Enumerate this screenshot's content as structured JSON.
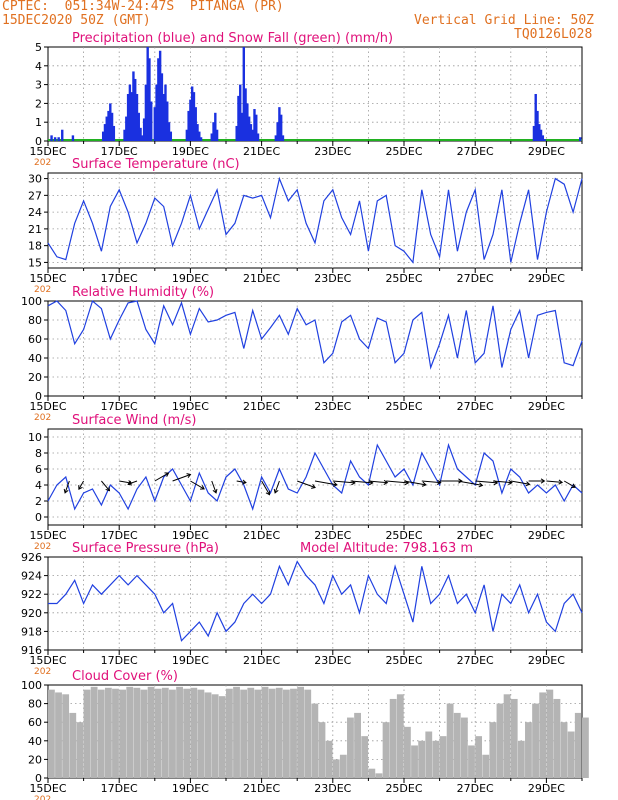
{
  "header": {
    "line1_left": "CPTEC:  051:34W-24:47S  PITANGA (PR)",
    "line2_left": "15DEC2020 50Z (GMT)",
    "line2_right": "Vertical Grid Line: 50Z",
    "line3_right": "TQ0126L028"
  },
  "colors": {
    "header": "#e07020",
    "title": "#e0107a",
    "line": "#2040e0",
    "bar": "#1a30e0",
    "snow": "#20b020",
    "cloud": "#b4b4b4"
  },
  "x_ticks": [
    "15DEC",
    "17DEC",
    "19DEC",
    "21DEC",
    "23DEC",
    "25DEC",
    "27DEC",
    "29DEC"
  ],
  "tick_day": [
    "15",
    "17",
    "19",
    "21",
    "23",
    "25",
    "27",
    "29"
  ],
  "year_stub": "202",
  "chart_data": [
    {
      "id": "precip",
      "type": "bar",
      "title": "Precipitation (blue) and Snow Fall (green) (mm/h)",
      "ylim": [
        0,
        5
      ],
      "yticks": [
        0,
        1,
        2,
        3,
        4,
        5
      ],
      "grid": true,
      "x": [
        0.1,
        0.2,
        0.3,
        0.4,
        0.7,
        1.55,
        1.6,
        1.65,
        1.7,
        1.75,
        1.8,
        1.85,
        2.15,
        2.2,
        2.25,
        2.3,
        2.35,
        2.4,
        2.45,
        2.5,
        2.55,
        2.6,
        2.65,
        2.7,
        2.75,
        2.8,
        2.85,
        2.9,
        3.0,
        3.05,
        3.1,
        3.15,
        3.2,
        3.25,
        3.3,
        3.35,
        3.4,
        3.45,
        3.9,
        3.95,
        4.0,
        4.05,
        4.1,
        4.15,
        4.2,
        4.25,
        4.3,
        4.6,
        4.65,
        4.7,
        4.75,
        5.3,
        5.35,
        5.4,
        5.45,
        5.5,
        5.55,
        5.6,
        5.65,
        5.7,
        5.75,
        5.8,
        5.85,
        5.9,
        6.4,
        6.45,
        6.5,
        6.55,
        6.6,
        13.65,
        13.7,
        13.75,
        13.8,
        13.85,
        13.9,
        13.95,
        14.95
      ],
      "values": [
        0.3,
        0.2,
        0.2,
        0.6,
        0.3,
        0.5,
        0.9,
        1.3,
        1.6,
        2.0,
        1.5,
        0.8,
        0.6,
        1.3,
        2.5,
        3.0,
        2.6,
        3.7,
        3.3,
        2.5,
        1.5,
        0.7,
        0.3,
        1.2,
        3.0,
        5.0,
        4.4,
        2.1,
        1.8,
        3.0,
        4.4,
        4.8,
        3.6,
        2.5,
        3.0,
        2.1,
        1.0,
        0.5,
        0.6,
        1.6,
        2.2,
        2.9,
        2.6,
        1.8,
        0.9,
        0.5,
        0.2,
        0.4,
        1.0,
        1.5,
        0.6,
        0.8,
        2.4,
        3.0,
        1.5,
        5.0,
        2.8,
        2.0,
        1.3,
        0.9,
        0.6,
        1.7,
        1.4,
        0.4,
        0.3,
        1.0,
        1.8,
        1.4,
        0.3,
        0.8,
        2.5,
        1.6,
        0.9,
        0.6,
        0.3,
        0.1,
        0.2
      ]
    },
    {
      "id": "temp",
      "type": "line",
      "title": "Surface Temperature (nC)",
      "ylim": [
        14,
        31
      ],
      "yticks": [
        15,
        18,
        21,
        24,
        27,
        30
      ],
      "grid": true,
      "x": [
        0,
        0.25,
        0.5,
        0.75,
        1.0,
        1.25,
        1.5,
        1.75,
        2.0,
        2.25,
        2.5,
        2.75,
        3.0,
        3.25,
        3.5,
        3.75,
        4.0,
        4.25,
        4.5,
        4.75,
        5.0,
        5.25,
        5.5,
        5.75,
        6.0,
        6.25,
        6.5,
        6.75,
        7.0,
        7.25,
        7.5,
        7.75,
        8.0,
        8.25,
        8.5,
        8.75,
        9.0,
        9.25,
        9.5,
        9.75,
        10.0,
        10.25,
        10.5,
        10.75,
        11.0,
        11.25,
        11.5,
        11.75,
        12.0,
        12.25,
        12.5,
        12.75,
        13.0,
        13.25,
        13.5,
        13.75,
        14.0,
        14.25,
        14.5,
        14.75,
        15.0
      ],
      "values": [
        18.5,
        16,
        15.5,
        22,
        26,
        22,
        17,
        25,
        28,
        24,
        18.5,
        22,
        26.5,
        25,
        18,
        22,
        27,
        21,
        24.5,
        28,
        20,
        22,
        27,
        26.5,
        27,
        23,
        30,
        26,
        28,
        22,
        18.5,
        26,
        28,
        23,
        20,
        26,
        17,
        26,
        27,
        18,
        17,
        15,
        28,
        20,
        16,
        28,
        17,
        24,
        28,
        15.5,
        20,
        28,
        15,
        22,
        28,
        15.5,
        24,
        30,
        29,
        24,
        30
      ]
    },
    {
      "id": "rh",
      "type": "line",
      "title": "Relative Humidity (%)",
      "ylim": [
        0,
        100
      ],
      "yticks": [
        0,
        20,
        40,
        60,
        80,
        100
      ],
      "grid": true,
      "x": [
        0,
        0.25,
        0.5,
        0.75,
        1.0,
        1.25,
        1.5,
        1.75,
        2.0,
        2.25,
        2.5,
        2.75,
        3.0,
        3.25,
        3.5,
        3.75,
        4.0,
        4.25,
        4.5,
        4.75,
        5.0,
        5.25,
        5.5,
        5.75,
        6.0,
        6.25,
        6.5,
        6.75,
        7.0,
        7.25,
        7.5,
        7.75,
        8.0,
        8.25,
        8.5,
        8.75,
        9.0,
        9.25,
        9.5,
        9.75,
        10.0,
        10.25,
        10.5,
        10.75,
        11.0,
        11.25,
        11.5,
        11.75,
        12.0,
        12.25,
        12.5,
        12.75,
        13.0,
        13.25,
        13.5,
        13.75,
        14.0,
        14.25,
        14.5,
        14.75,
        15.0
      ],
      "values": [
        95,
        100,
        90,
        55,
        70,
        100,
        92,
        60,
        80,
        98,
        100,
        70,
        55,
        95,
        75,
        98,
        65,
        92,
        78,
        80,
        85,
        88,
        50,
        90,
        60,
        72,
        85,
        65,
        92,
        75,
        80,
        35,
        45,
        78,
        85,
        60,
        50,
        82,
        78,
        35,
        45,
        80,
        88,
        30,
        55,
        85,
        40,
        90,
        35,
        45,
        95,
        30,
        70,
        90,
        40,
        85,
        88,
        90,
        35,
        32,
        58
      ]
    },
    {
      "id": "wind",
      "type": "line",
      "title": "Surface Wind (m/s)",
      "ylim": [
        -1,
        11
      ],
      "yticks": [
        0,
        2,
        4,
        6,
        8,
        10
      ],
      "grid": true,
      "x": [
        0,
        0.25,
        0.5,
        0.75,
        1.0,
        1.25,
        1.5,
        1.75,
        2.0,
        2.25,
        2.5,
        2.75,
        3.0,
        3.25,
        3.5,
        3.75,
        4.0,
        4.25,
        4.5,
        4.75,
        5.0,
        5.25,
        5.5,
        5.75,
        6.0,
        6.25,
        6.5,
        6.75,
        7.0,
        7.25,
        7.5,
        7.75,
        8.0,
        8.25,
        8.5,
        8.75,
        9.0,
        9.25,
        9.5,
        9.75,
        10.0,
        10.25,
        10.5,
        10.75,
        11.0,
        11.25,
        11.5,
        11.75,
        12.0,
        12.25,
        12.5,
        12.75,
        13.0,
        13.25,
        13.5,
        13.75,
        14.0,
        14.25,
        14.5,
        14.75,
        15.0
      ],
      "values": [
        2,
        4,
        5,
        1,
        3,
        3.5,
        1.5,
        4,
        3,
        1,
        3.5,
        5,
        2,
        5,
        6,
        4,
        2,
        5.5,
        3,
        2,
        5,
        6,
        4,
        1,
        5,
        3,
        6,
        3.5,
        3,
        5,
        8,
        6,
        4,
        3,
        7,
        5,
        4,
        9,
        7,
        5,
        6,
        4,
        8,
        6,
        4,
        9,
        6,
        5,
        4,
        8,
        7,
        3,
        6,
        5,
        3,
        4,
        3,
        4,
        2,
        4,
        3
      ],
      "vectors": {
        "x": [
          0.6,
          1.0,
          1.5,
          2.0,
          2.5,
          3.0,
          3.5,
          4.0,
          4.6,
          5.3,
          6.0,
          6.5,
          7.0,
          7.5,
          8.0,
          8.5,
          9.0,
          9.5,
          10.0,
          10.5,
          11.0,
          11.5,
          12.0,
          12.5,
          13.0,
          13.5,
          14.0,
          14.5
        ],
        "speed": [
          3,
          2,
          3,
          3,
          2,
          4,
          5,
          4,
          3,
          2,
          4,
          3,
          5,
          6,
          6,
          6,
          5,
          6,
          6,
          5,
          6,
          7,
          6,
          5,
          5,
          4,
          4,
          3
        ],
        "dir_deg": [
          200,
          210,
          140,
          100,
          250,
          60,
          70,
          120,
          160,
          100,
          150,
          200,
          110,
          100,
          95,
          95,
          95,
          95,
          100,
          95,
          90,
          100,
          95,
          95,
          100,
          90,
          95,
          120
        ]
      }
    },
    {
      "id": "pres",
      "type": "line",
      "title": "Surface Pressure (hPa)",
      "subtitle": "Model Altitude: 798.163 m",
      "ylim": [
        916,
        926
      ],
      "yticks": [
        916,
        918,
        920,
        922,
        924,
        926
      ],
      "grid": true,
      "x": [
        0,
        0.25,
        0.5,
        0.75,
        1.0,
        1.25,
        1.5,
        1.75,
        2.0,
        2.25,
        2.5,
        2.75,
        3.0,
        3.25,
        3.5,
        3.75,
        4.0,
        4.25,
        4.5,
        4.75,
        5.0,
        5.25,
        5.5,
        5.75,
        6.0,
        6.25,
        6.5,
        6.75,
        7.0,
        7.25,
        7.5,
        7.75,
        8.0,
        8.25,
        8.5,
        8.75,
        9.0,
        9.25,
        9.5,
        9.75,
        10.0,
        10.25,
        10.5,
        10.75,
        11.0,
        11.25,
        11.5,
        11.75,
        12.0,
        12.25,
        12.5,
        12.75,
        13.0,
        13.25,
        13.5,
        13.75,
        14.0,
        14.25,
        14.5,
        14.75,
        15.0
      ],
      "values": [
        921,
        921,
        922,
        923.5,
        921,
        923,
        922,
        923,
        924,
        923,
        924,
        923,
        922,
        920,
        921,
        917,
        918,
        919,
        917.5,
        920,
        918,
        919,
        921,
        922,
        921,
        922,
        925,
        923,
        925.5,
        924,
        923,
        921,
        924,
        922,
        923,
        920,
        924,
        922,
        921,
        925,
        922,
        919,
        925,
        921,
        922,
        924,
        921,
        922,
        920,
        923,
        918,
        922,
        921,
        923,
        920,
        922,
        919,
        918,
        921,
        922,
        920
      ]
    },
    {
      "id": "cloud",
      "type": "area",
      "title": "Cloud Cover (%)",
      "ylim": [
        0,
        100
      ],
      "yticks": [
        0,
        20,
        40,
        60,
        80,
        100
      ],
      "grid": true,
      "x": [
        0,
        0.2,
        0.4,
        0.6,
        0.8,
        1.0,
        1.2,
        1.4,
        1.6,
        1.8,
        2.0,
        2.2,
        2.4,
        2.6,
        2.8,
        3.0,
        3.2,
        3.4,
        3.6,
        3.8,
        4.0,
        4.2,
        4.4,
        4.6,
        4.8,
        5.0,
        5.2,
        5.4,
        5.6,
        5.8,
        6.0,
        6.2,
        6.4,
        6.6,
        6.8,
        7.0,
        7.2,
        7.4,
        7.6,
        7.8,
        8.0,
        8.2,
        8.4,
        8.6,
        8.8,
        9.0,
        9.2,
        9.4,
        9.6,
        9.8,
        10.0,
        10.2,
        10.4,
        10.6,
        10.8,
        11.0,
        11.2,
        11.4,
        11.6,
        11.8,
        12.0,
        12.2,
        12.4,
        12.6,
        12.8,
        13.0,
        13.2,
        13.4,
        13.6,
        13.8,
        14.0,
        14.2,
        14.4,
        14.6,
        14.8,
        15.0
      ],
      "values": [
        95,
        92,
        90,
        70,
        60,
        95,
        98,
        95,
        97,
        96,
        95,
        98,
        97,
        95,
        98,
        96,
        97,
        95,
        98,
        96,
        97,
        95,
        92,
        90,
        88,
        96,
        98,
        95,
        97,
        95,
        98,
        96,
        97,
        95,
        96,
        98,
        95,
        80,
        60,
        40,
        20,
        25,
        65,
        70,
        45,
        10,
        5,
        60,
        85,
        90,
        55,
        35,
        40,
        50,
        40,
        45,
        80,
        70,
        65,
        35,
        45,
        25,
        60,
        80,
        90,
        85,
        40,
        60,
        80,
        92,
        95,
        85,
        60,
        50,
        70,
        65
      ]
    }
  ]
}
